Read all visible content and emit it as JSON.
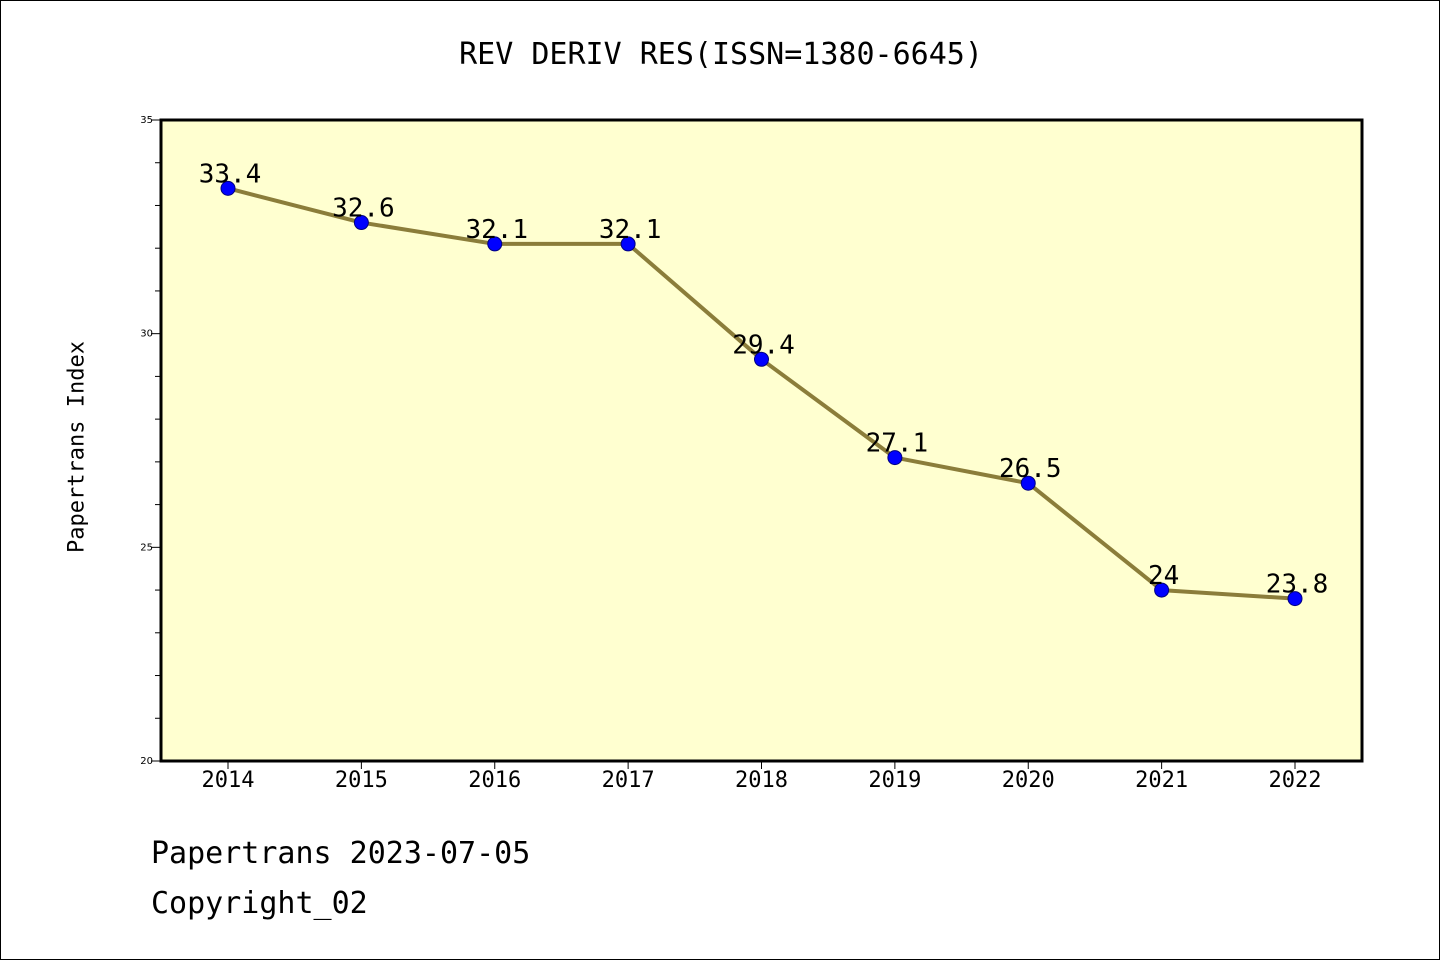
{
  "chart_data": {
    "type": "line",
    "title": "REV DERIV RES(ISSN=1380-6645)",
    "ylabel": "Papertrans Index",
    "xlabel": "",
    "categories": [
      "2014",
      "2015",
      "2016",
      "2017",
      "2018",
      "2019",
      "2020",
      "2021",
      "2022"
    ],
    "series": [
      {
        "values": [
          33.4,
          32.6,
          32.1,
          32.1,
          29.4,
          27.1,
          26.5,
          24,
          23.8
        ],
        "data_labels": [
          "33.4",
          "32.6",
          "32.1",
          "32.1",
          "29.4",
          "27.1",
          "26.5",
          "24",
          "23.8"
        ]
      }
    ],
    "ylim": [
      20,
      35
    ],
    "yticks": [
      20,
      25,
      30,
      35
    ],
    "ytick_labels": [
      "20",
      "25",
      "30",
      "35"
    ],
    "grid": false,
    "colors": {
      "plot_background": "#ffffd0",
      "line": "#8b7d3a",
      "marker": "#0000ff"
    }
  },
  "footer": {
    "line1": "Papertrans 2023-07-05",
    "line2": "Copyright_02"
  }
}
